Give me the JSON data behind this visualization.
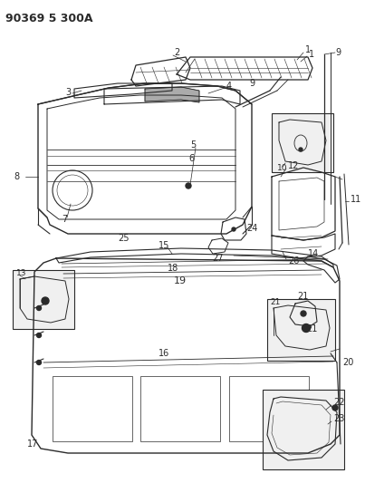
{
  "title": "90369 5 300A",
  "bg_color": "#ffffff",
  "lc": "#2a2a2a",
  "fig_width": 4.03,
  "fig_height": 5.33,
  "dpi": 100,
  "label_fs": 7.5,
  "title_fs": 9
}
